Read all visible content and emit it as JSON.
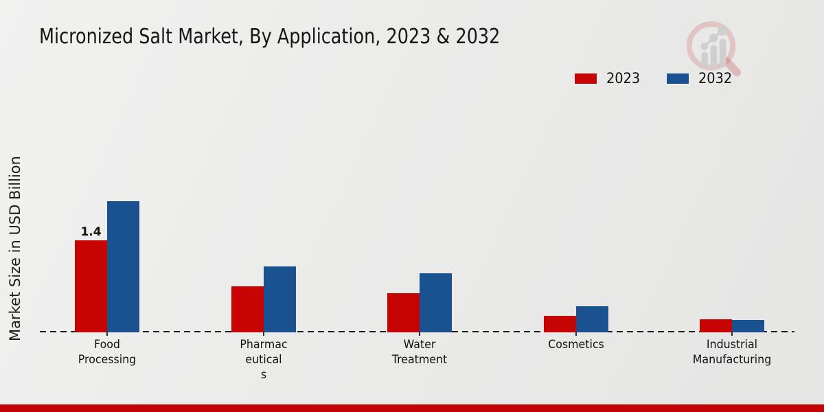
{
  "title": "Micronized Salt Market, By Application, 2023 & 2032",
  "ylabel": "Market Size in USD Billion",
  "legend": [
    {
      "label": "2023",
      "color": "#c70404"
    },
    {
      "label": "2032",
      "color": "#1a5291"
    }
  ],
  "colors": {
    "bar_2023": "#c70404",
    "bar_2032": "#1a5291",
    "footer_bar": "#c10303",
    "axis": "#141414"
  },
  "watermark_icon": "magnifier-bar-chart-logo",
  "chart_data": {
    "type": "bar",
    "title": "Micronized Salt Market, By Application, 2023 & 2032",
    "xlabel": "",
    "ylabel": "Market Size in USD Billion",
    "ylim": [
      0,
      2.2
    ],
    "grid": false,
    "legend_position": "top-right",
    "categories": [
      "Food Processing",
      "Pharmaceuticals",
      "Water Treatment",
      "Cosmetics",
      "Industrial Manufacturing"
    ],
    "category_display_lines": [
      [
        "Food",
        "Processing"
      ],
      [
        "Pharmac",
        "eutical",
        "s"
      ],
      [
        "Water",
        "Treatment"
      ],
      [
        "Cosmetics"
      ],
      [
        "Industrial",
        "Manufacturing"
      ]
    ],
    "series": [
      {
        "name": "2023",
        "color": "#c70404",
        "values": [
          1.4,
          0.7,
          0.6,
          0.25,
          0.2
        ]
      },
      {
        "name": "2032",
        "color": "#1a5291",
        "values": [
          2.0,
          1.0,
          0.9,
          0.4,
          0.19
        ]
      }
    ],
    "annotations": [
      {
        "series": "2023",
        "category": "Food Processing",
        "text": "1.4"
      }
    ]
  }
}
